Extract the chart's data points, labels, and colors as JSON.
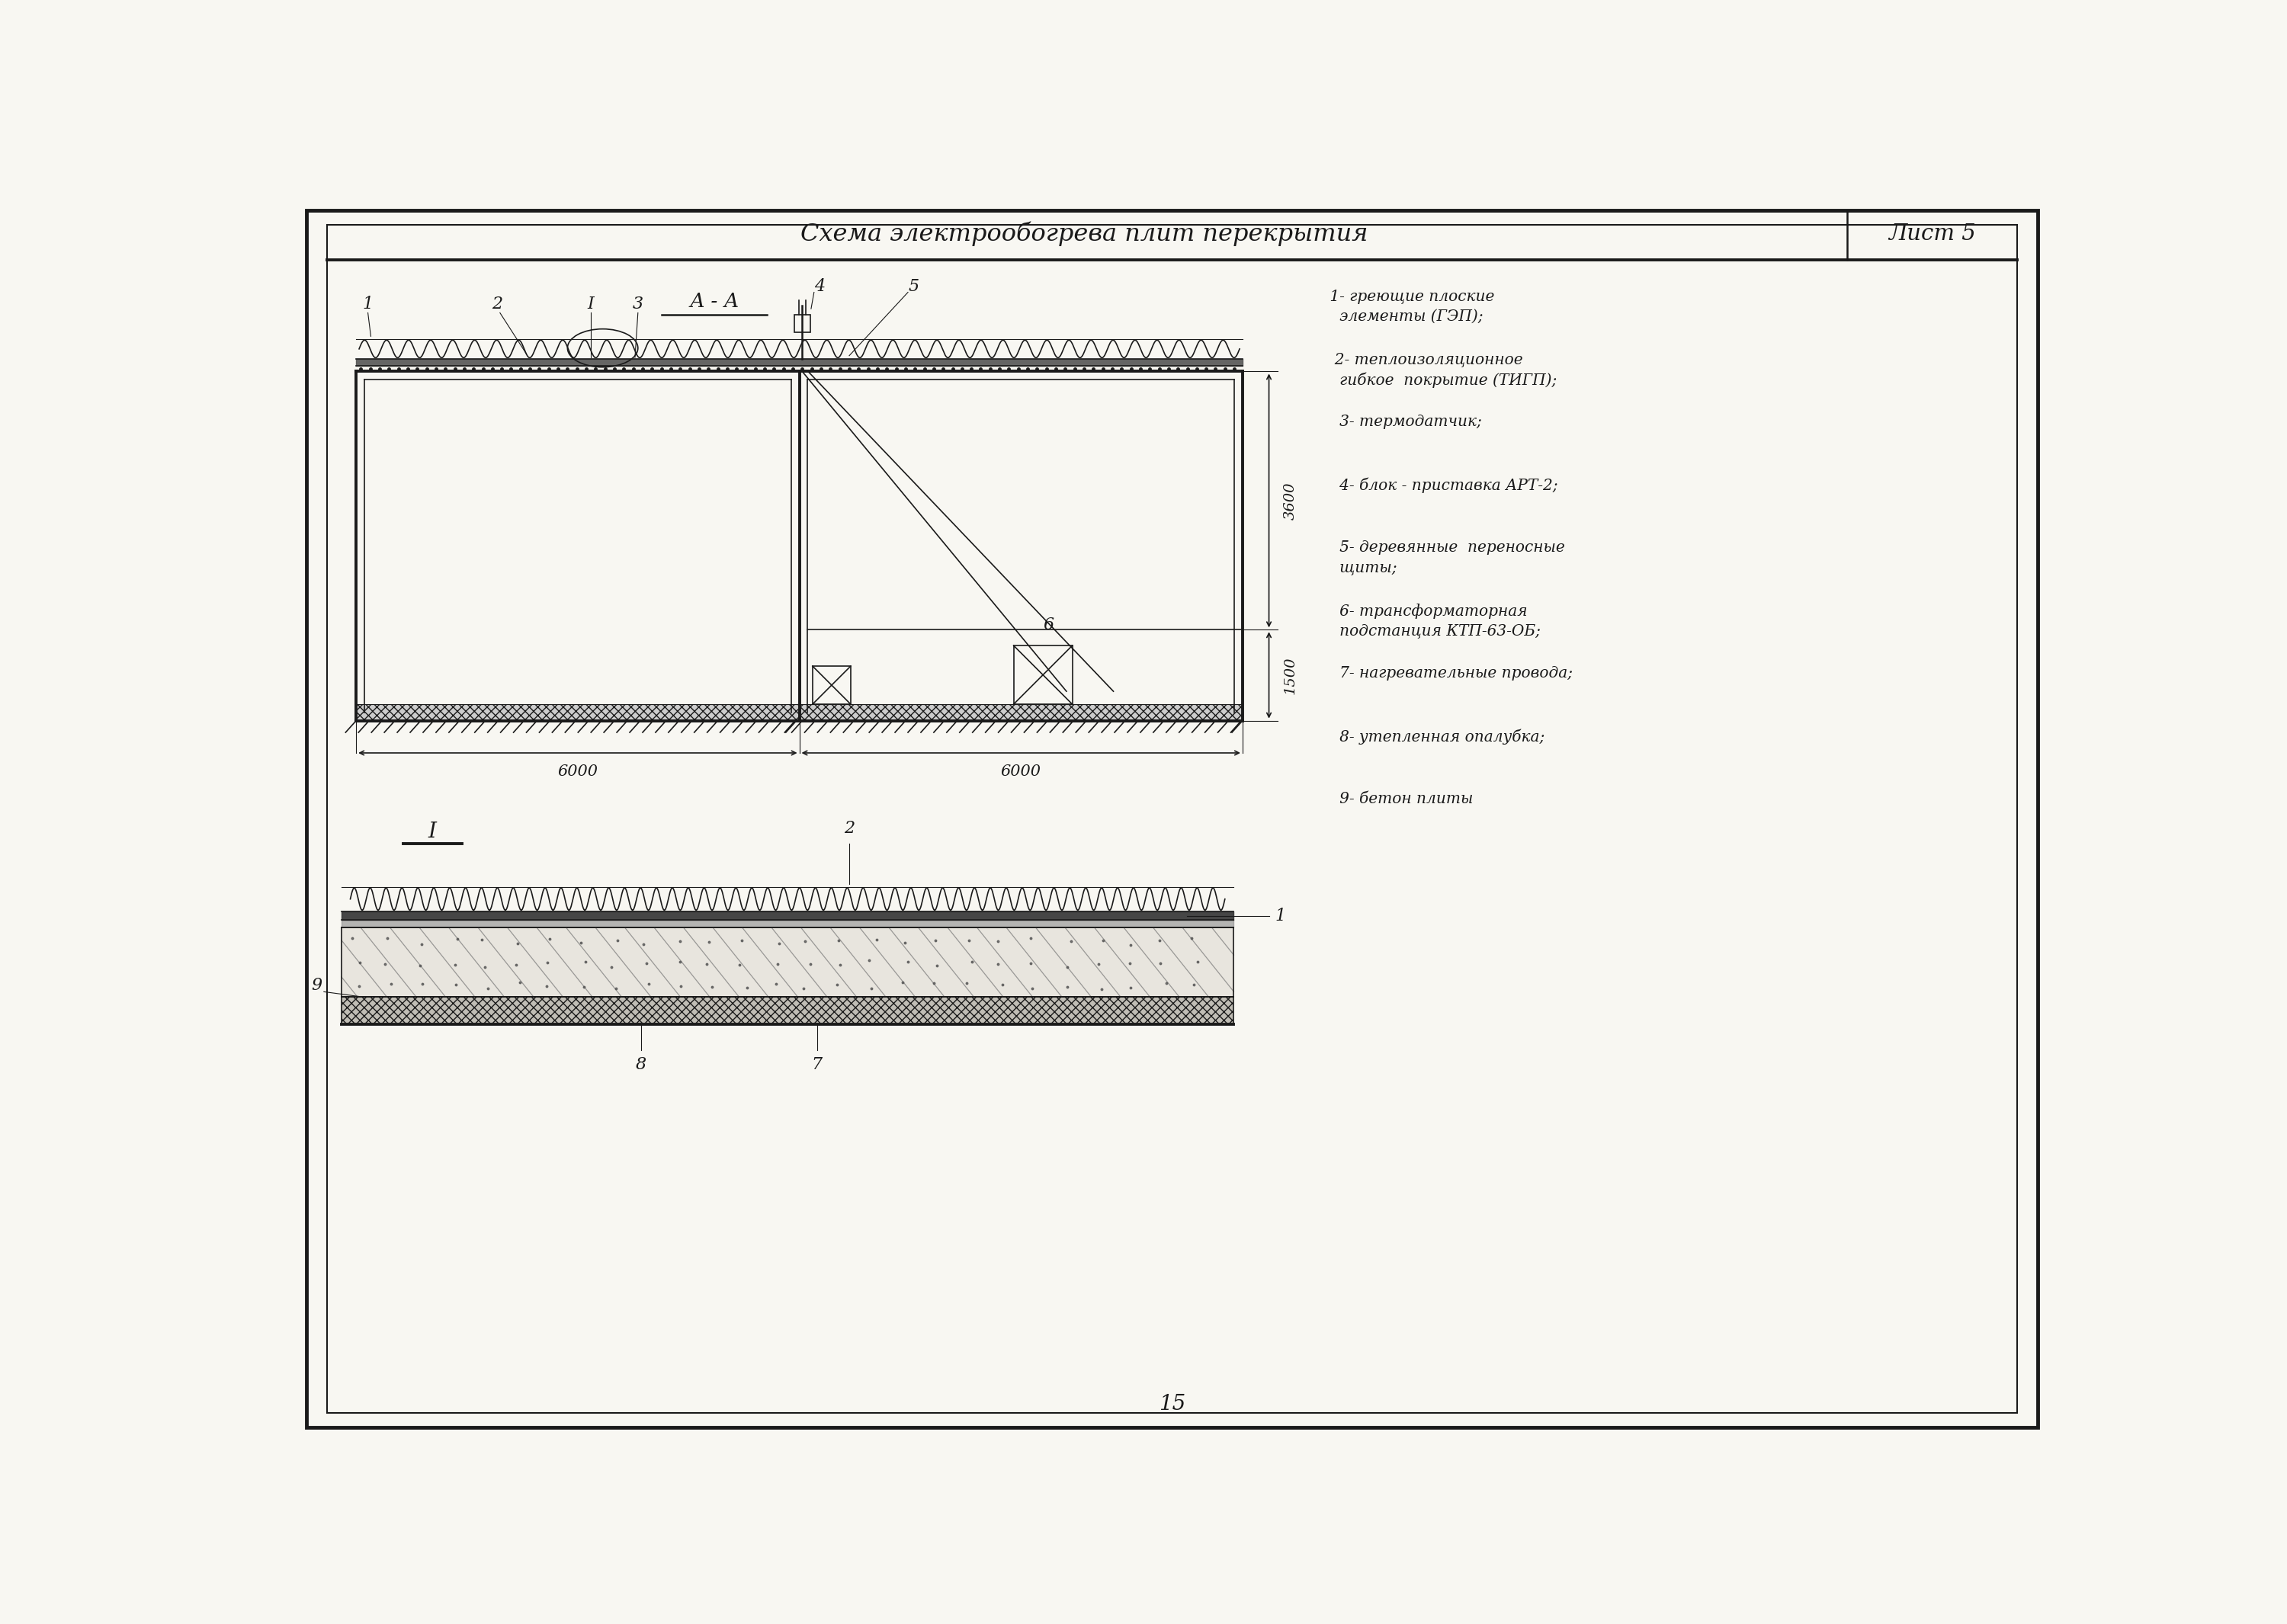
{
  "title": "Схема электрообогрева плит перекрытия",
  "sheet": "Лист 5",
  "page_number": "15",
  "bg_color": "#f8f7f2",
  "line_color": "#1a1a1a",
  "legend": [
    " 1- греющие плоские\n   элементы (ГЭП);",
    "  2- теплоизоляционное\n   гибкое  покрытие (ТИГП);",
    "   3- термодатчик;",
    "   4- блок - приставка АРТ-2;",
    "   5- деревянные  переносные\n   щиты;",
    "   6- трансформаторная\n   подстанция КТП-63-ОБ;",
    "   7- нагревательные провода;",
    "   8- утепленная опалубка;",
    "   9- бетон плиты"
  ],
  "dim_3600": "3600",
  "dim_1500": "1500",
  "dim_6000_left": "6000",
  "dim_6000_right": "6000"
}
